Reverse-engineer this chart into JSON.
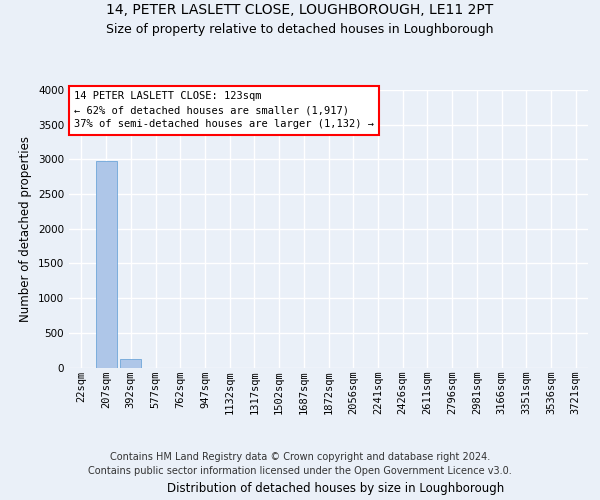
{
  "title": "14, PETER LASLETT CLOSE, LOUGHBOROUGH, LE11 2PT",
  "subtitle": "Size of property relative to detached houses in Loughborough",
  "xlabel": "Distribution of detached houses by size in Loughborough",
  "ylabel": "Number of detached properties",
  "footer_line1": "Contains HM Land Registry data © Crown copyright and database right 2024.",
  "footer_line2": "Contains public sector information licensed under the Open Government Licence v3.0.",
  "categories": [
    "22sqm",
    "207sqm",
    "392sqm",
    "577sqm",
    "762sqm",
    "947sqm",
    "1132sqm",
    "1317sqm",
    "1502sqm",
    "1687sqm",
    "1872sqm",
    "2056sqm",
    "2241sqm",
    "2426sqm",
    "2611sqm",
    "2796sqm",
    "2981sqm",
    "3166sqm",
    "3351sqm",
    "3536sqm",
    "3721sqm"
  ],
  "values": [
    0,
    2980,
    120,
    0,
    0,
    0,
    0,
    0,
    0,
    0,
    0,
    0,
    0,
    0,
    0,
    0,
    0,
    0,
    0,
    0,
    0
  ],
  "bar_color": "#aec6e8",
  "bar_edge_color": "#5b9bd5",
  "ylim": [
    0,
    4000
  ],
  "yticks": [
    0,
    500,
    1000,
    1500,
    2000,
    2500,
    3000,
    3500,
    4000
  ],
  "annotation_box_text_line1": "14 PETER LASLETT CLOSE: 123sqm",
  "annotation_box_text_line2": "← 62% of detached houses are smaller (1,917)",
  "annotation_box_text_line3": "37% of semi-detached houses are larger (1,132) →",
  "bg_color": "#eaf0f8",
  "plot_bg_color": "#eaf0f8",
  "grid_color": "#ffffff",
  "title_fontsize": 10,
  "subtitle_fontsize": 9,
  "tick_fontsize": 7.5,
  "ylabel_fontsize": 8.5,
  "xlabel_fontsize": 8.5,
  "footer_fontsize": 7,
  "annot_fontsize": 7.5
}
